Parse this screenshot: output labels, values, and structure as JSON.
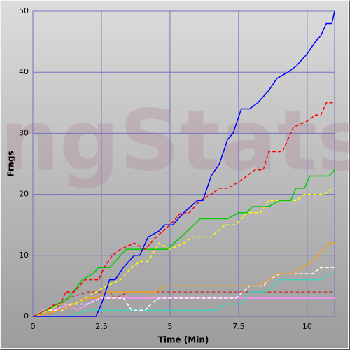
{
  "chart_data": {
    "type": "line",
    "watermark": "ngStats",
    "xlabel": "Time (Min)",
    "ylabel": "Frags",
    "xlim": [
      0,
      11
    ],
    "xticks": [
      0,
      2.5,
      5,
      7.5,
      10
    ],
    "ylim": [
      0,
      50
    ],
    "yticks": [
      0,
      10,
      20,
      30,
      40,
      50
    ],
    "grid": true,
    "grid_color": "#7474c0",
    "series": [
      {
        "color": "#0000ff",
        "dash": false,
        "x": [
          0,
          2.3,
          2.5,
          2.8,
          3.0,
          3.3,
          3.7,
          3.9,
          4.2,
          4.6,
          4.8,
          5.1,
          5.5,
          6.0,
          6.2,
          6.5,
          6.8,
          7.1,
          7.3,
          7.6,
          7.9,
          8.2,
          8.6,
          8.9,
          9.3,
          9.6,
          10.0,
          10.3,
          10.5,
          10.7,
          10.9,
          11
        ],
        "values": [
          0,
          0,
          2,
          6,
          6,
          8,
          10,
          10,
          13,
          14,
          15,
          15,
          17,
          19,
          19,
          23,
          25,
          29,
          30,
          34,
          34,
          35,
          37,
          39,
          40,
          41,
          43,
          45,
          46,
          48,
          48,
          50
        ]
      },
      {
        "color": "#ff0000",
        "dash": true,
        "x": [
          0,
          0.5,
          0.8,
          1.0,
          1.2,
          1.5,
          1.9,
          2.4,
          2.6,
          2.9,
          3.2,
          3.7,
          4.1,
          4.5,
          5.0,
          5.4,
          5.7,
          6.1,
          6.5,
          6.8,
          7.1,
          7.5,
          7.8,
          8.1,
          8.4,
          8.6,
          9.1,
          9.5,
          10.0,
          10.3,
          10.5,
          10.7,
          11
        ],
        "values": [
          0,
          1,
          2,
          2,
          4,
          4,
          6,
          6,
          8,
          10,
          11,
          12,
          11,
          13,
          15,
          17,
          17,
          19,
          20,
          21,
          21,
          22,
          23,
          24,
          24,
          27,
          27,
          31,
          32,
          33,
          33,
          35,
          35
        ]
      },
      {
        "color": "#00cc00",
        "dash": false,
        "x": [
          0,
          0.5,
          1.3,
          1.8,
          2.2,
          2.4,
          2.8,
          3.0,
          3.4,
          4.4,
          4.9,
          5.4,
          6.1,
          7.1,
          7.5,
          7.8,
          8.0,
          8.6,
          9.0,
          9.4,
          9.6,
          9.9,
          10.1,
          10.8,
          11
        ],
        "values": [
          0,
          1,
          3,
          6,
          7,
          8,
          8,
          9,
          11,
          11,
          11,
          13,
          16,
          16,
          17,
          17,
          18,
          18,
          19,
          19,
          21,
          21,
          23,
          23,
          24
        ]
      },
      {
        "color": "#ffff00",
        "dash": true,
        "x": [
          0,
          0.6,
          1.0,
          1.5,
          1.9,
          2.3,
          2.7,
          3.2,
          3.4,
          3.6,
          3.9,
          4.2,
          4.6,
          5.0,
          5.5,
          5.8,
          6.5,
          7.0,
          7.4,
          7.8,
          8.3,
          8.6,
          9.6,
          9.9,
          10.6,
          11
        ],
        "values": [
          0,
          1,
          2,
          2,
          3,
          4,
          5,
          6,
          7,
          8,
          9,
          9,
          12,
          11,
          12,
          13,
          13,
          15,
          15,
          17,
          17,
          19,
          19,
          20,
          20,
          21
        ]
      },
      {
        "color": "#f0a020",
        "dash": false,
        "x": [
          0,
          1.0,
          1.5,
          2.0,
          2.4,
          2.6,
          4.5,
          4.8,
          8.2,
          8.6,
          8.9,
          9.5,
          9.8,
          10.2,
          10.6,
          10.8,
          11
        ],
        "values": [
          0,
          1,
          2,
          3,
          3,
          4,
          4,
          5,
          5,
          6,
          7,
          7,
          8,
          9,
          11,
          12,
          12
        ]
      },
      {
        "color": "#ffffff",
        "dash": true,
        "x": [
          0,
          0.5,
          1.1,
          1.4,
          2.0,
          2.5,
          3.3,
          3.6,
          4.1,
          4.3,
          4.6,
          7.4,
          7.9,
          8.4,
          8.6,
          9.0,
          10.2,
          10.5,
          11
        ],
        "values": [
          0,
          1,
          1,
          2,
          2,
          3,
          3,
          1,
          1,
          2,
          3,
          3,
          5,
          5,
          6,
          7,
          7,
          8,
          8
        ]
      },
      {
        "color": "#40d0c0",
        "dash": false,
        "x": [
          0,
          1.3,
          2.0,
          6.7,
          7.0,
          7.6,
          7.9,
          8.4,
          8.8,
          9.0,
          10.5,
          10.8,
          11
        ],
        "values": [
          0,
          0,
          1,
          1,
          2,
          2,
          4,
          4,
          5,
          6,
          6,
          7,
          7
        ]
      },
      {
        "color": "#ff90ff",
        "dash": false,
        "x": [
          0,
          0.4,
          0.8,
          1.3,
          1.6,
          2.0,
          2.4,
          11
        ],
        "values": [
          0,
          1,
          1,
          2,
          1,
          2,
          3,
          3
        ]
      },
      {
        "color": "#c04040",
        "dash": true,
        "x": [
          0,
          0.5,
          1.0,
          1.3,
          2.0,
          2.8,
          3.0,
          3.5,
          11
        ],
        "values": [
          0,
          0,
          2,
          3,
          4,
          4,
          3,
          4,
          4
        ]
      }
    ]
  }
}
